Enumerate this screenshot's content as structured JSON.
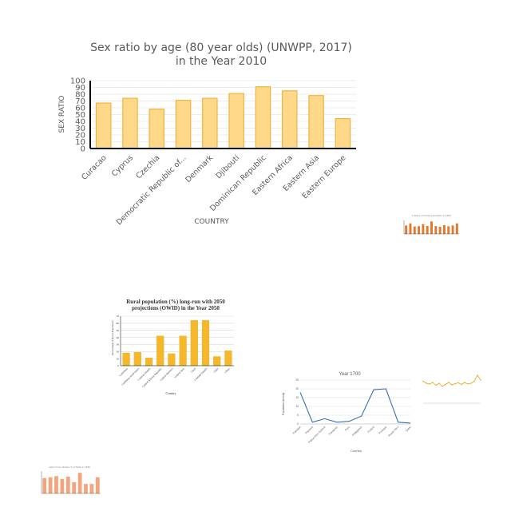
{
  "colors": {
    "bar_main_fill": "#ffd88a",
    "bar_main_stroke": "#f0b43c",
    "bar_gold": "#f4b82a",
    "bar_orange": "#e0782e",
    "bar_salmon": "#f3a57e",
    "line_blue": "#3a6fb0",
    "line_gold": "#e8a51a",
    "grid": "#d9d9d9",
    "axis": "#000000"
  },
  "chart_data": [
    {
      "type": "bar",
      "title_line1": "Sex ratio by age (80 year olds) (UNWPP, 2017)",
      "title_line2": "in the Year 2010",
      "xlabel": "COUNTRY",
      "ylabel": "SEX RATIO",
      "ylim": [
        0,
        100
      ],
      "yticks": [
        0,
        10,
        20,
        30,
        40,
        50,
        60,
        70,
        80,
        90,
        100
      ],
      "grid": true,
      "categories": [
        "Curacao",
        "Cyprus",
        "Czechia",
        "Democratic Republic of...",
        "Denmark",
        "Djibouti",
        "Dominican Republic",
        "Eastern Africa",
        "Eastern Asia",
        "Eastern Europe"
      ],
      "values": [
        67,
        74,
        58,
        71,
        74,
        81,
        91,
        85,
        78,
        44
      ]
    },
    {
      "type": "bar",
      "title": "Rural population (%) long-run with 2050 projections (OWID) in the Year 2050",
      "xlabel": "Country",
      "ylabel": "Percentage of Rural Population",
      "ylim": [
        0,
        70
      ],
      "yticks": [
        0,
        10,
        20,
        30,
        40,
        50,
        60,
        70
      ],
      "grid": true,
      "categories": [
        "Caribbean",
        "Caribbean small states",
        "Cayman Islands",
        "Central African Republic",
        "Central America",
        "Central Asia",
        "Chad",
        "Channel Islands",
        "Chile",
        "China"
      ],
      "values": [
        18,
        19,
        11,
        42,
        17,
        42,
        64,
        64,
        13,
        21
      ]
    },
    {
      "type": "line",
      "title": "Year 1700",
      "xlabel": "Country",
      "ylabel": "Population density",
      "ylim": [
        0,
        25
      ],
      "yticks": [
        0,
        5,
        10,
        15,
        20,
        25
      ],
      "grid": true,
      "categories": [
        "Pakistan",
        "Panama",
        "Papua New Guinea",
        "Paraguay",
        "Peru",
        "Philippines",
        "Poland",
        "Portugal",
        "Puerto Rico",
        "Qatar"
      ],
      "values": [
        18,
        1,
        3,
        1,
        1.5,
        4.5,
        19.5,
        20,
        1,
        0.5
      ]
    },
    {
      "type": "bar",
      "categories": [
        "",
        "",
        "",
        "",
        "",
        "",
        "",
        "",
        "",
        "",
        "",
        "",
        ""
      ],
      "values": [
        50,
        62,
        44,
        46,
        58,
        47,
        74,
        46,
        42,
        52,
        45,
        50,
        62
      ],
      "ylim": [
        0,
        80
      ]
    },
    {
      "type": "line",
      "categories": [
        "",
        "",
        "",
        "",
        "",
        "",
        "",
        "",
        "",
        "",
        "",
        "",
        "",
        "",
        "",
        "",
        "",
        "",
        ""
      ],
      "values": [
        55,
        50,
        48,
        52,
        45,
        50,
        42,
        47,
        52,
        46,
        49,
        51,
        47,
        52,
        48,
        50,
        55,
        70,
        58
      ],
      "ylim": [
        0,
        80
      ]
    },
    {
      "type": "bar",
      "categories": [
        "",
        "",
        "",
        "",
        "",
        "",
        "",
        "",
        "",
        ""
      ],
      "values": [
        55,
        58,
        62,
        52,
        60,
        40,
        74,
        34,
        34,
        58
      ],
      "ylim": [
        0,
        80
      ]
    }
  ]
}
